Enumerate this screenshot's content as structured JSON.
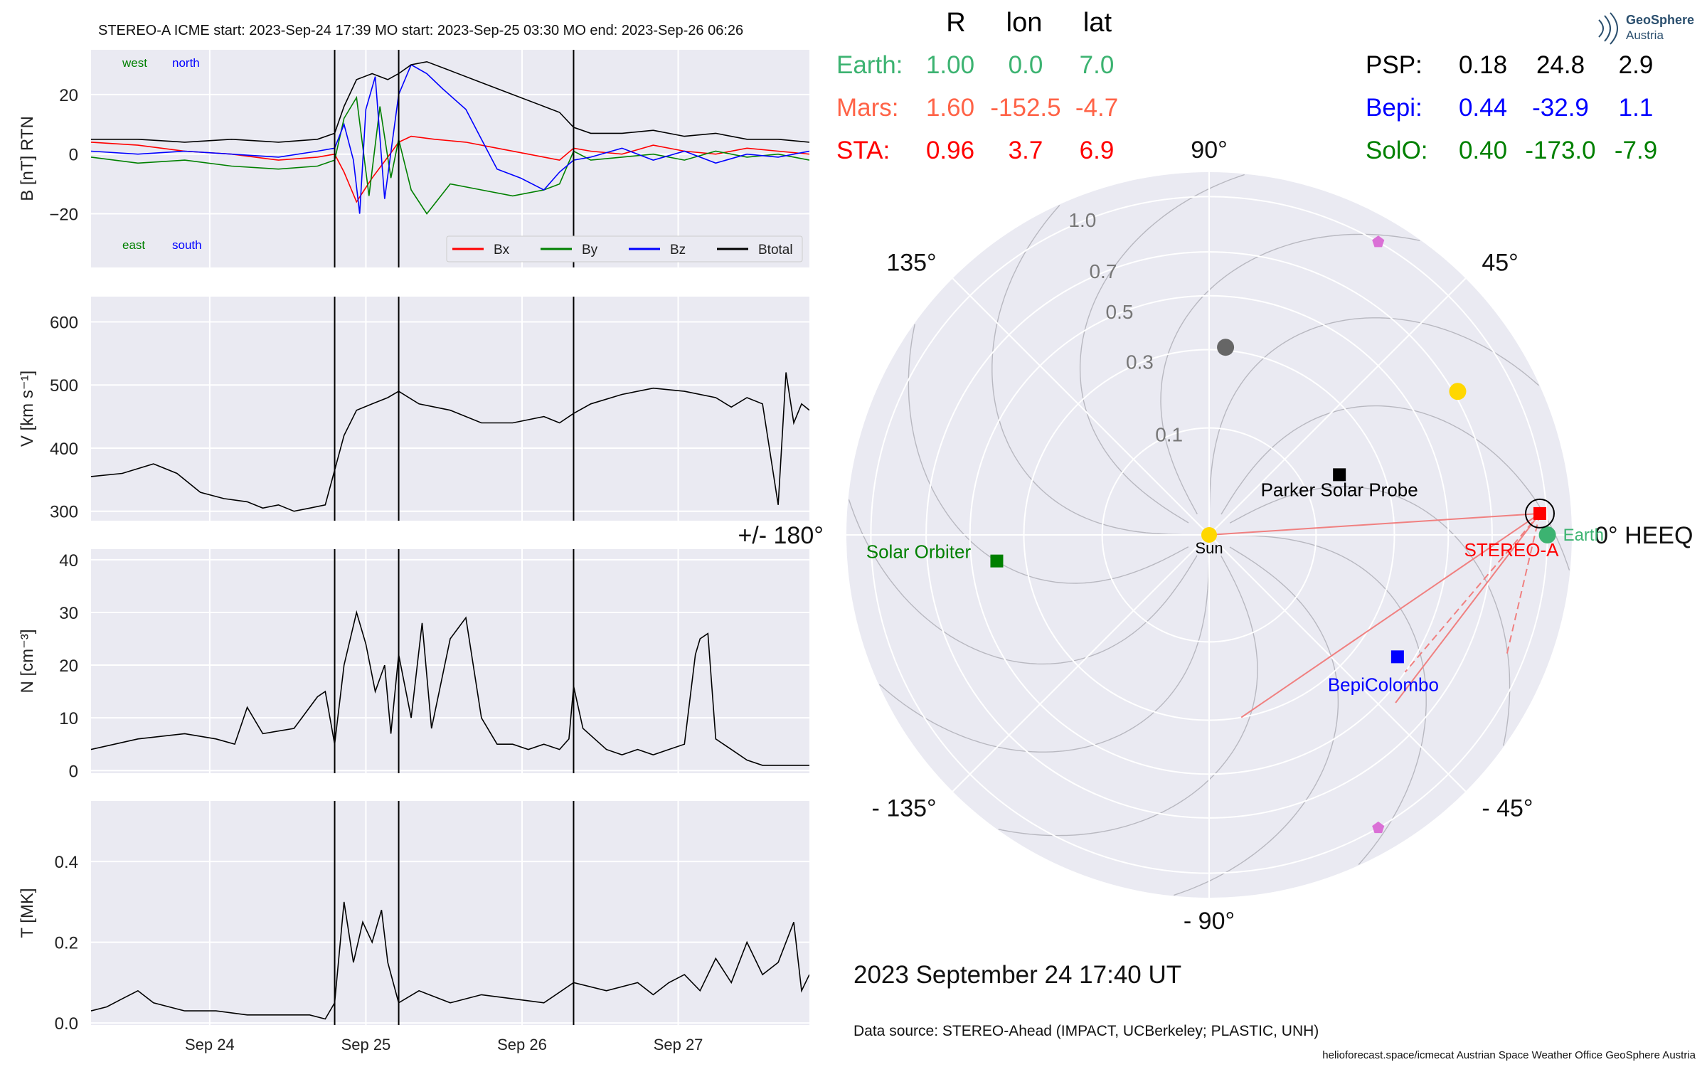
{
  "header": {
    "title": "STEREO-A    ICME start: 2023-Sep-24 17:39   MO start: 2023-Sep-25 03:30   MO end: 2023-Sep-26 06:26"
  },
  "logo": {
    "line1": "GeoSphere",
    "line2": "Austria"
  },
  "colors": {
    "bx": "#ff0000",
    "by": "#008000",
    "bz": "#0000ff",
    "bt": "#000000",
    "panel_bg": "#eaeaf2",
    "earth": "#3cb371",
    "mars": "#ff6347",
    "sta": "#ff0000",
    "psp": "#000000",
    "bepi": "#0000ff",
    "solo": "#008000",
    "sun": "#ffd700"
  },
  "events": {
    "icme_start": 1.56,
    "mo_start": 1.97,
    "mo_end": 3.09
  },
  "time_axis": {
    "xlim": [
      0,
      4.6
    ],
    "ticks": [
      {
        "x": 0.76,
        "label": "Sep 24"
      },
      {
        "x": 1.76,
        "label": "Sep 25"
      },
      {
        "x": 2.76,
        "label": "Sep 26"
      },
      {
        "x": 3.76,
        "label": "Sep 27"
      }
    ]
  },
  "chart_data": [
    {
      "type": "line",
      "name": "magnetic-field",
      "ylabel": "B [nT] RTN",
      "ylim": [
        -38,
        35
      ],
      "yticks": [
        -20,
        0,
        20
      ],
      "corner_labels": {
        "west": "west",
        "north": "north",
        "east": "east",
        "south": "south"
      },
      "legend": {
        "placement": "lower-right",
        "entries": [
          "Bx",
          "By",
          "Bz",
          "Btotal"
        ]
      },
      "series": [
        {
          "name": "Bx",
          "x": [
            0,
            0.3,
            0.6,
            0.9,
            1.2,
            1.45,
            1.56,
            1.62,
            1.7,
            1.8,
            1.9,
            1.97,
            2.05,
            2.2,
            2.4,
            2.6,
            2.8,
            3.0,
            3.09,
            3.2,
            3.4,
            3.6,
            3.8,
            4.0,
            4.2,
            4.4,
            4.6
          ],
          "y": [
            4,
            3,
            1,
            0,
            -2,
            -1,
            0,
            -6,
            -16,
            -8,
            -1,
            4,
            6,
            5,
            4,
            2,
            0,
            -2,
            2,
            1,
            0,
            3,
            1,
            0,
            2,
            1,
            0
          ]
        },
        {
          "name": "By",
          "x": [
            0,
            0.3,
            0.6,
            0.9,
            1.2,
            1.45,
            1.56,
            1.62,
            1.7,
            1.78,
            1.85,
            1.92,
            1.97,
            2.05,
            2.15,
            2.3,
            2.5,
            2.7,
            2.9,
            3.0,
            3.09,
            3.2,
            3.4,
            3.6,
            3.8,
            4.0,
            4.2,
            4.4,
            4.6
          ],
          "y": [
            -1,
            -3,
            -2,
            -4,
            -5,
            -4,
            -2,
            12,
            19,
            -14,
            16,
            -8,
            5,
            -12,
            -20,
            -10,
            -12,
            -14,
            -12,
            -10,
            1,
            -2,
            -1,
            0,
            -2,
            1,
            -1,
            0,
            -2
          ]
        },
        {
          "name": "Bz",
          "x": [
            0,
            0.3,
            0.6,
            0.9,
            1.2,
            1.45,
            1.56,
            1.62,
            1.68,
            1.72,
            1.76,
            1.82,
            1.88,
            1.97,
            2.05,
            2.15,
            2.25,
            2.4,
            2.5,
            2.6,
            2.75,
            2.9,
            3.0,
            3.09,
            3.2,
            3.4,
            3.6,
            3.8,
            4.0,
            4.2,
            4.4,
            4.6
          ],
          "y": [
            1,
            0,
            1,
            0,
            -1,
            1,
            2,
            10,
            -2,
            -20,
            15,
            26,
            -15,
            20,
            30,
            27,
            22,
            15,
            5,
            -5,
            -8,
            -12,
            -6,
            -2,
            -1,
            2,
            -2,
            1,
            -3,
            0,
            -1,
            1
          ]
        },
        {
          "name": "Btotal",
          "x": [
            0,
            0.3,
            0.6,
            0.9,
            1.2,
            1.45,
            1.56,
            1.62,
            1.7,
            1.8,
            1.9,
            1.97,
            2.05,
            2.15,
            2.3,
            2.5,
            2.7,
            2.9,
            3.0,
            3.09,
            3.2,
            3.4,
            3.6,
            3.8,
            4.0,
            4.2,
            4.4,
            4.6
          ],
          "y": [
            5,
            5,
            4,
            5,
            4,
            5,
            7,
            16,
            25,
            27,
            25,
            27,
            30,
            31,
            28,
            24,
            20,
            16,
            14,
            9,
            7,
            7,
            8,
            6,
            7,
            5,
            5,
            4
          ]
        }
      ]
    },
    {
      "type": "line",
      "name": "speed",
      "ylabel": "V [km s⁻¹]",
      "ylim": [
        285,
        640
      ],
      "yticks": [
        300,
        400,
        500,
        600
      ],
      "series": [
        {
          "x": [
            0,
            0.2,
            0.4,
            0.55,
            0.7,
            0.85,
            1.0,
            1.1,
            1.2,
            1.3,
            1.4,
            1.5,
            1.56,
            1.62,
            1.7,
            1.8,
            1.9,
            1.97,
            2.1,
            2.3,
            2.5,
            2.7,
            2.9,
            3.0,
            3.09,
            3.2,
            3.4,
            3.6,
            3.8,
            4.0,
            4.1,
            4.2,
            4.3,
            4.4,
            4.45,
            4.5,
            4.55,
            4.6
          ],
          "y": [
            355,
            360,
            375,
            360,
            330,
            320,
            315,
            305,
            310,
            300,
            305,
            310,
            365,
            420,
            460,
            470,
            480,
            490,
            470,
            460,
            440,
            440,
            450,
            440,
            455,
            470,
            485,
            495,
            490,
            480,
            465,
            480,
            470,
            310,
            520,
            440,
            470,
            460
          ]
        }
      ]
    },
    {
      "type": "line",
      "name": "density",
      "ylabel": "N [cm⁻³]",
      "ylim": [
        -0.5,
        42
      ],
      "yticks": [
        0,
        10,
        20,
        30,
        40
      ],
      "series": [
        {
          "x": [
            0,
            0.3,
            0.6,
            0.8,
            0.92,
            1.0,
            1.1,
            1.3,
            1.45,
            1.5,
            1.56,
            1.62,
            1.7,
            1.76,
            1.82,
            1.88,
            1.92,
            1.97,
            2.05,
            2.12,
            2.18,
            2.3,
            2.4,
            2.5,
            2.6,
            2.7,
            2.8,
            2.9,
            3.0,
            3.06,
            3.09,
            3.15,
            3.3,
            3.4,
            3.5,
            3.6,
            3.7,
            3.8,
            3.87,
            3.9,
            3.95,
            4.0,
            4.1,
            4.2,
            4.3,
            4.4,
            4.5,
            4.6
          ],
          "y": [
            4,
            6,
            7,
            6,
            5,
            12,
            7,
            8,
            14,
            15,
            5,
            20,
            30,
            24,
            15,
            20,
            7,
            22,
            10,
            28,
            8,
            25,
            29,
            10,
            5,
            5,
            4,
            5,
            4,
            6,
            16,
            8,
            4,
            3,
            4,
            3,
            4,
            5,
            22,
            25,
            26,
            6,
            4,
            2,
            1,
            1,
            1,
            1
          ]
        }
      ]
    },
    {
      "type": "line",
      "name": "temperature",
      "ylabel": "T [MK]",
      "ylim": [
        -0.005,
        0.55
      ],
      "yticks": [
        0.0,
        0.2,
        0.4
      ],
      "series": [
        {
          "x": [
            0,
            0.1,
            0.2,
            0.3,
            0.4,
            0.5,
            0.6,
            0.8,
            1.0,
            1.2,
            1.4,
            1.5,
            1.56,
            1.62,
            1.68,
            1.74,
            1.8,
            1.86,
            1.9,
            1.97,
            2.1,
            2.3,
            2.5,
            2.7,
            2.9,
            3.09,
            3.3,
            3.5,
            3.6,
            3.7,
            3.8,
            3.9,
            4.0,
            4.1,
            4.2,
            4.3,
            4.4,
            4.5,
            4.55,
            4.6
          ],
          "y": [
            0.03,
            0.04,
            0.06,
            0.08,
            0.05,
            0.04,
            0.03,
            0.03,
            0.02,
            0.02,
            0.02,
            0.01,
            0.05,
            0.3,
            0.15,
            0.25,
            0.2,
            0.28,
            0.15,
            0.05,
            0.08,
            0.05,
            0.07,
            0.06,
            0.05,
            0.1,
            0.08,
            0.1,
            0.07,
            0.1,
            0.12,
            0.08,
            0.16,
            0.1,
            0.2,
            0.12,
            0.15,
            0.25,
            0.08,
            0.12
          ]
        }
      ]
    },
    {
      "type": "scatter",
      "name": "orbit-plot",
      "coords": "HEEQ",
      "rlim": [
        0,
        1.15
      ],
      "radial_ticks": [
        0.1,
        0.3,
        0.5,
        0.7,
        1.0
      ],
      "angle_labels": [
        {
          "deg": 0,
          "label": "0° HEEQ"
        },
        {
          "deg": 45,
          "label": "45°"
        },
        {
          "deg": 90,
          "label": "90°"
        },
        {
          "deg": 135,
          "label": "135°"
        },
        {
          "deg": 180,
          "label": "+/- 180°"
        },
        {
          "deg": -135,
          "label": "- 135°"
        },
        {
          "deg": -90,
          "label": "- 90°"
        },
        {
          "deg": -45,
          "label": "- 45°"
        }
      ],
      "bodies": [
        {
          "key": "sun",
          "label": "Sun",
          "r": 0.0,
          "lon": 0.0,
          "marker": "circle",
          "color": "#ffd700"
        },
        {
          "key": "earth",
          "label": "Earth",
          "r": 1.0,
          "lon": 0.0,
          "marker": "circle",
          "color": "#3cb371"
        },
        {
          "key": "sta",
          "label": "STEREO-A",
          "r": 0.96,
          "lon": 3.7,
          "marker": "square",
          "color": "#ff0000"
        },
        {
          "key": "psp",
          "label": "Parker Solar Probe",
          "r": 0.18,
          "lon": 24.8,
          "marker": "square",
          "color": "#000000"
        },
        {
          "key": "bepi",
          "label": "BepiColombo",
          "r": 0.44,
          "lon": -32.9,
          "marker": "square",
          "color": "#0000ff"
        },
        {
          "key": "solo",
          "label": "Solar Orbiter",
          "r": 0.4,
          "lon": -173.0,
          "marker": "square",
          "color": "#008000"
        },
        {
          "key": "venus",
          "label": "",
          "r": 0.72,
          "lon": 30.0,
          "marker": "circle",
          "color": "#ffd700"
        },
        {
          "key": "mercury",
          "label": "",
          "r": 0.31,
          "lon": 85.0,
          "marker": "circle",
          "color": "#666666"
        },
        {
          "key": "l4",
          "label": "",
          "r": 1.0,
          "lon": 60.0,
          "marker": "pentagon",
          "color": "#da70d6"
        },
        {
          "key": "l5",
          "label": "",
          "r": 1.0,
          "lon": -60.0,
          "marker": "pentagon",
          "color": "#da70d6"
        }
      ],
      "date": "2023 September 24  17:40 UT"
    }
  ],
  "positions_table": {
    "headers": [
      "R",
      "lon",
      "lat"
    ],
    "rows": [
      {
        "key": "earth",
        "name": "Earth:",
        "R": "1.00",
        "lon": "0.0",
        "lat": "7.0"
      },
      {
        "key": "mars",
        "name": "Mars:",
        "R": "1.60",
        "lon": "-152.5",
        "lat": "-4.7"
      },
      {
        "key": "sta",
        "name": "STA:",
        "R": "0.96",
        "lon": "3.7",
        "lat": "6.9"
      },
      {
        "key": "psp",
        "name": "PSP:",
        "R": "0.18",
        "lon": "24.8",
        "lat": "2.9"
      },
      {
        "key": "bepi",
        "name": "Bepi:",
        "R": "0.44",
        "lon": "-32.9",
        "lat": "1.1"
      },
      {
        "key": "solo",
        "name": "SolO:",
        "R": "0.40",
        "lon": "-173.0",
        "lat": "-7.9"
      }
    ]
  },
  "footer": {
    "data_source": "Data source: STEREO-Ahead (IMPACT, UCBerkeley; PLASTIC, UNH)",
    "credits": "helioforecast.space/icmecat   Austrian Space Weather Office   GeoSphere Austria"
  }
}
